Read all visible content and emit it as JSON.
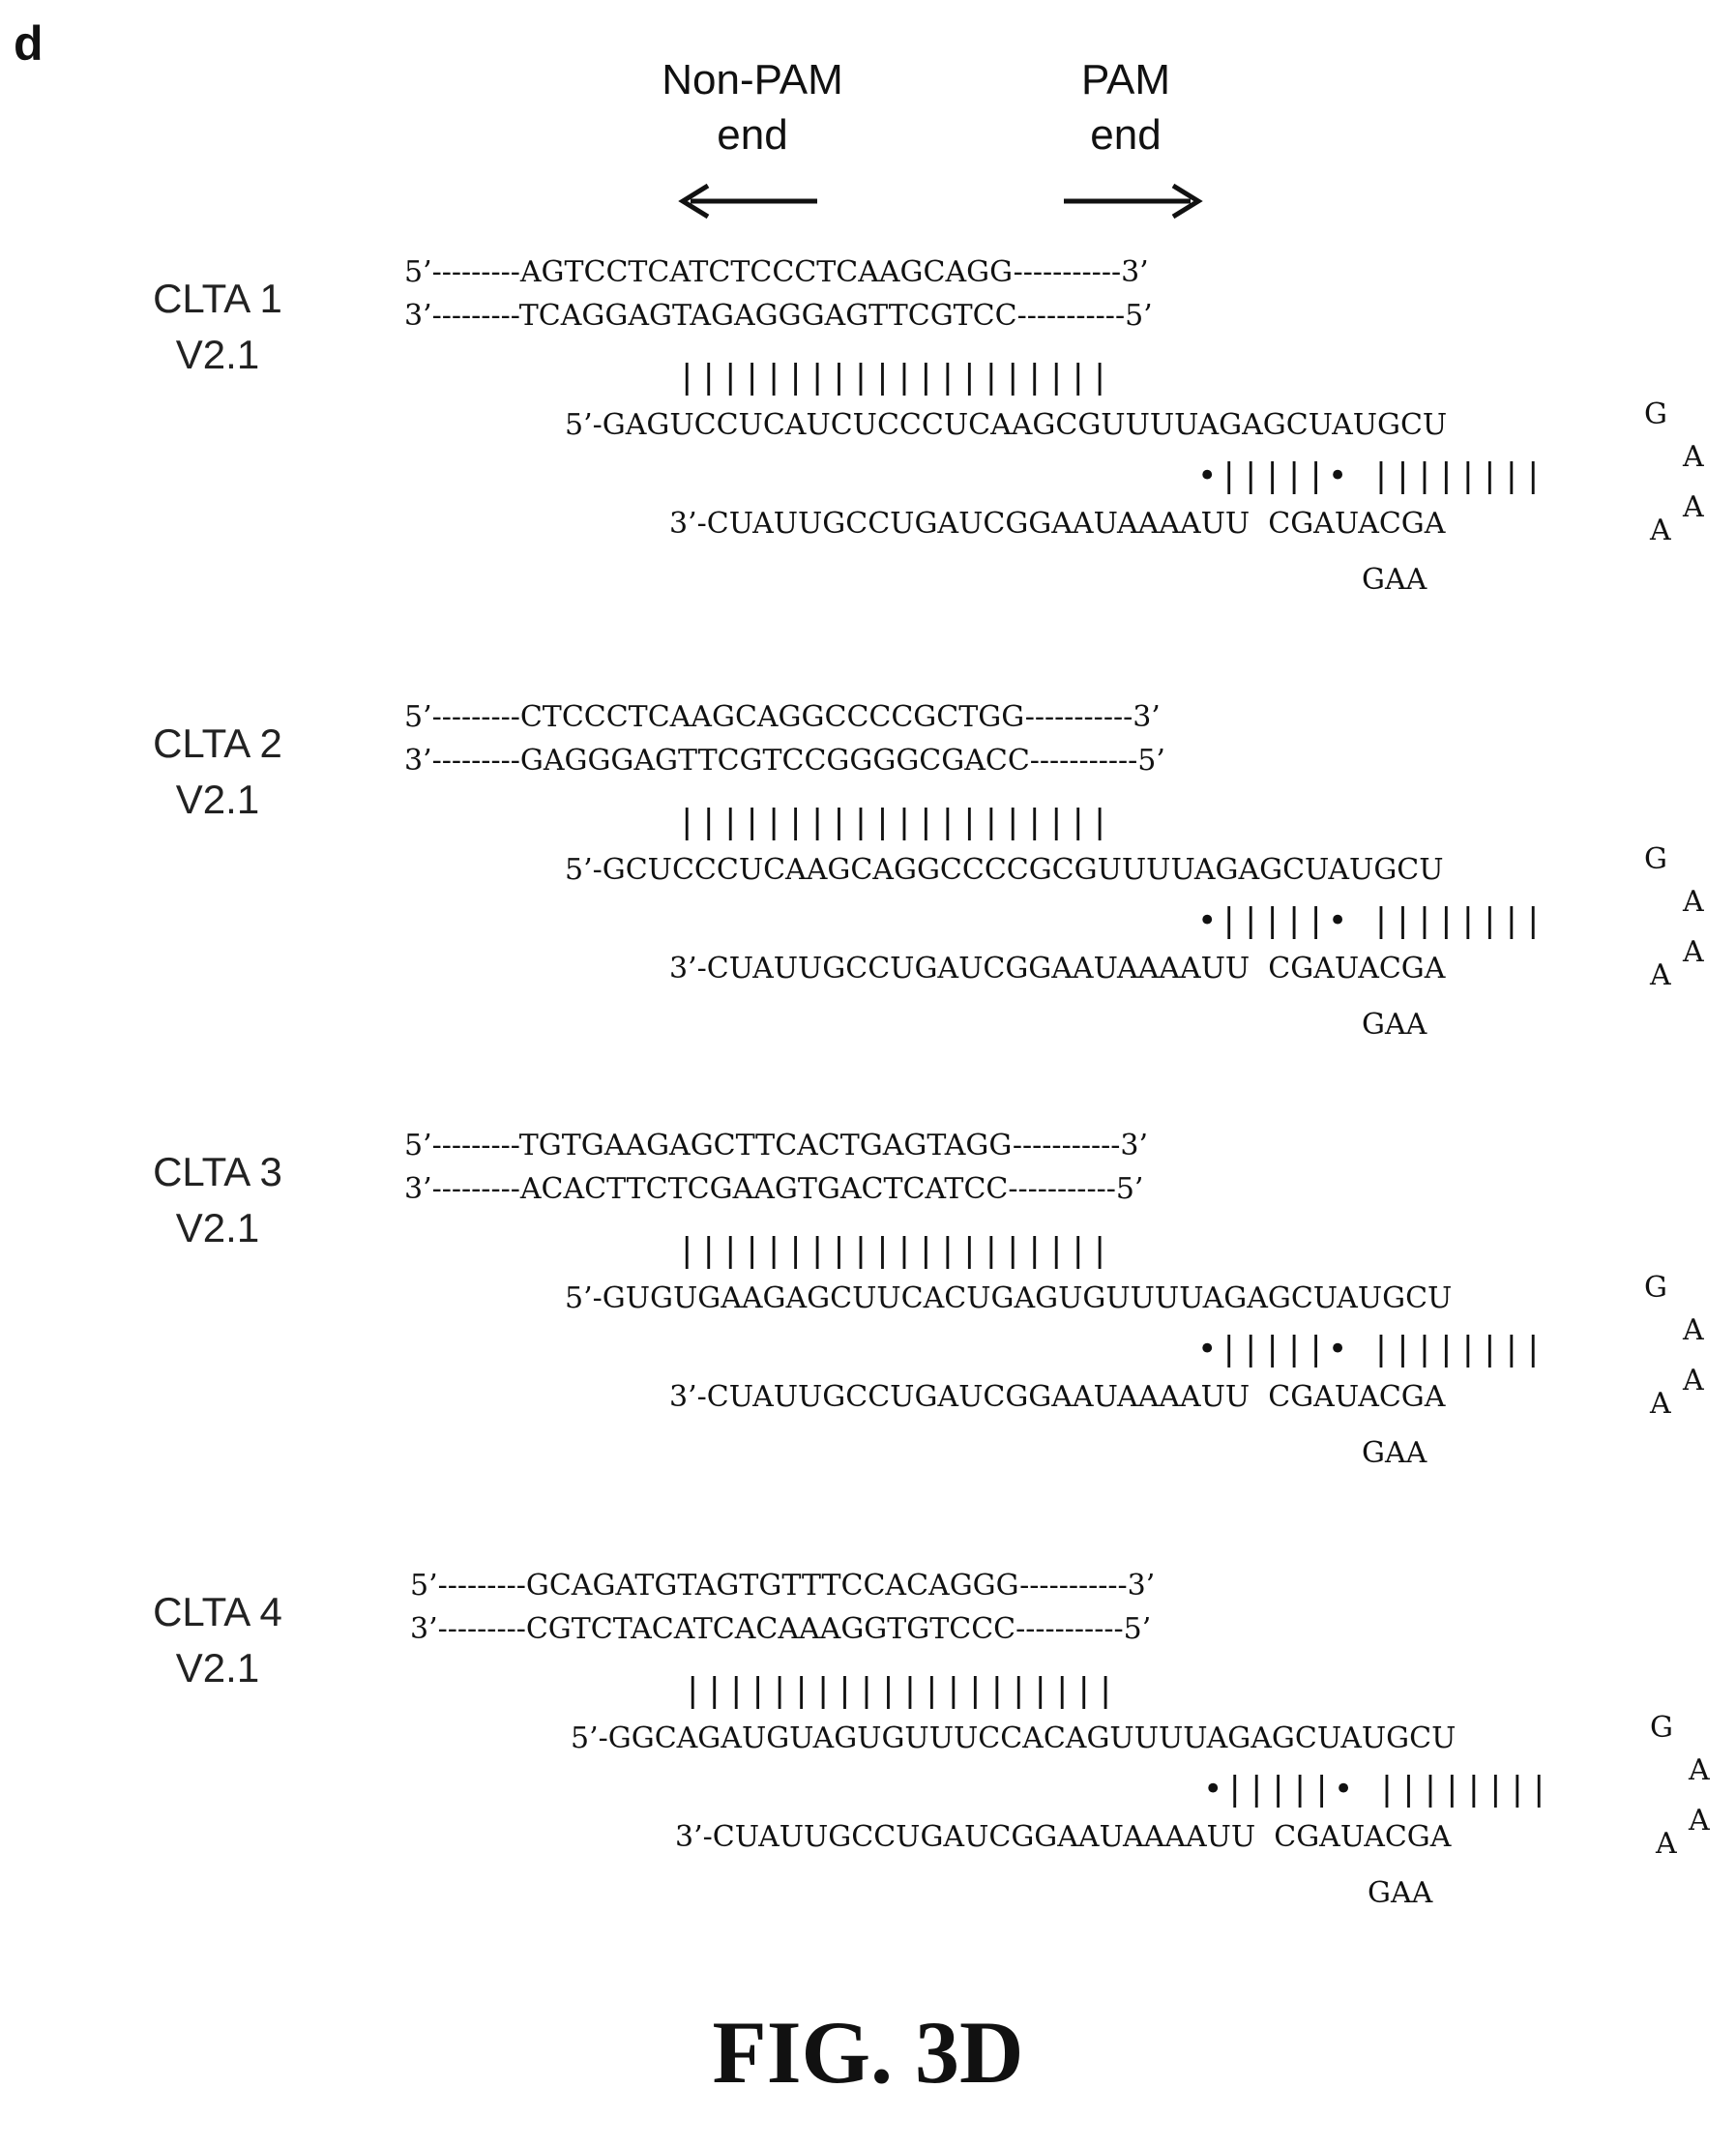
{
  "panel_letter": "d",
  "header": {
    "non_pam_line1": "Non-PAM",
    "non_pam_line2": "end",
    "pam_line1": "PAM",
    "pam_line2": "end"
  },
  "blocks": [
    {
      "label_line1": "CLTA 1",
      "label_line2": "V2.1",
      "dna_top": "5’---------AGTCCTCATCTCCCTCAAGCAGG-----------3’",
      "dna_bottom": "3’---------TCAGGAGTAGAGGGAGTTCGTCC-----------5’",
      "pairing_bars": "||||||||||||||||||||",
      "rna_top": "5’-GAGUCCUCAUCUCCCUCAAGCGUUUUAGAGCUAUGCU",
      "stem_pairing": "•|||||• ||||||||",
      "rna_bottom": "3’-CUAUUGCCUGAUCGGAAUAAAAUU  CGAUACGA",
      "bulge": "GAA",
      "loop": [
        "G",
        "A",
        "A",
        "A"
      ]
    },
    {
      "label_line1": "CLTA 2",
      "label_line2": "V2.1",
      "dna_top": "5’---------CTCCCTCAAGCAGGCCCCGCTGG-----------3’",
      "dna_bottom": "3’---------GAGGGAGTTCGTCCGGGGCGACC-----------5’",
      "pairing_bars": "||||||||||||||||||||",
      "rna_top": "5’-GCUCCCUCAAGCAGGCCCCGCGUUUUAGAGCUAUGCU",
      "stem_pairing": "•|||||• ||||||||",
      "rna_bottom": "3’-CUAUUGCCUGAUCGGAAUAAAAUU  CGAUACGA",
      "bulge": "GAA",
      "loop": [
        "G",
        "A",
        "A",
        "A"
      ]
    },
    {
      "label_line1": "CLTA 3",
      "label_line2": "V2.1",
      "dna_top": "5’---------TGTGAAGAGCTTCACTGAGTAGG-----------3’",
      "dna_bottom": "3’---------ACACTTCTCGAAGTGACTCATCC-----------5’",
      "pairing_bars": "||||||||||||||||||||",
      "rna_top": "5’-GUGUGAAGAGCUUCACUGAGUGUUUUAGAGCUAUGCU",
      "stem_pairing": "•|||||• ||||||||",
      "rna_bottom": "3’-CUAUUGCCUGAUCGGAAUAAAAUU  CGAUACGA",
      "bulge": "GAA",
      "loop": [
        "G",
        "A",
        "A",
        "A"
      ]
    },
    {
      "label_line1": "CLTA 4",
      "label_line2": "V2.1",
      "dna_top": "5’---------GCAGATGTAGTGTTTCCACAGGG-----------3’",
      "dna_bottom": "3’---------CGTCTACATCACAAAGGTGTCCC-----------5’",
      "pairing_bars": "||||||||||||||||||||",
      "rna_top": "5’-GGCAGAUGUAGUGUUUCCACAGUUUUAGAGCUAUGCU",
      "stem_pairing": "•|||||• ||||||||",
      "rna_bottom": "3’-CUAUUGCCUGAUCGGAAUAAAAUU  CGAUACGA",
      "bulge": "GAA",
      "loop": [
        "G",
        "A",
        "A",
        "A"
      ]
    }
  ],
  "figure_label": "FIG. 3D"
}
